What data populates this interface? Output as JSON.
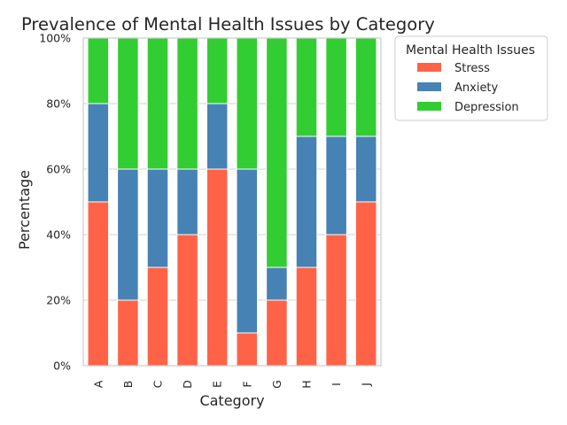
{
  "chart_data": {
    "type": "bar",
    "stacked": true,
    "title": "Prevalence of Mental Health Issues by Category",
    "xlabel": "Category",
    "ylabel": "Percentage",
    "categories": [
      "A",
      "B",
      "C",
      "D",
      "E",
      "F",
      "G",
      "H",
      "I",
      "J"
    ],
    "series": [
      {
        "name": "Stress",
        "color": "#ff6347",
        "values": [
          50,
          20,
          30,
          40,
          60,
          10,
          20,
          30,
          40,
          50
        ]
      },
      {
        "name": "Anxiety",
        "color": "#4682b4",
        "values": [
          30,
          40,
          30,
          20,
          20,
          50,
          10,
          40,
          30,
          20
        ]
      },
      {
        "name": "Depression",
        "color": "#32cd32",
        "values": [
          20,
          40,
          40,
          40,
          20,
          40,
          70,
          30,
          30,
          30
        ]
      }
    ],
    "ylim": [
      0,
      100
    ],
    "yticks": [
      0,
      20,
      40,
      60,
      80,
      100
    ],
    "ytick_labels": [
      "0%",
      "20%",
      "40%",
      "60%",
      "80%",
      "100%"
    ],
    "grid": true,
    "legend": {
      "title": "Mental Health Issues",
      "placement": "outside-upper-right"
    }
  }
}
